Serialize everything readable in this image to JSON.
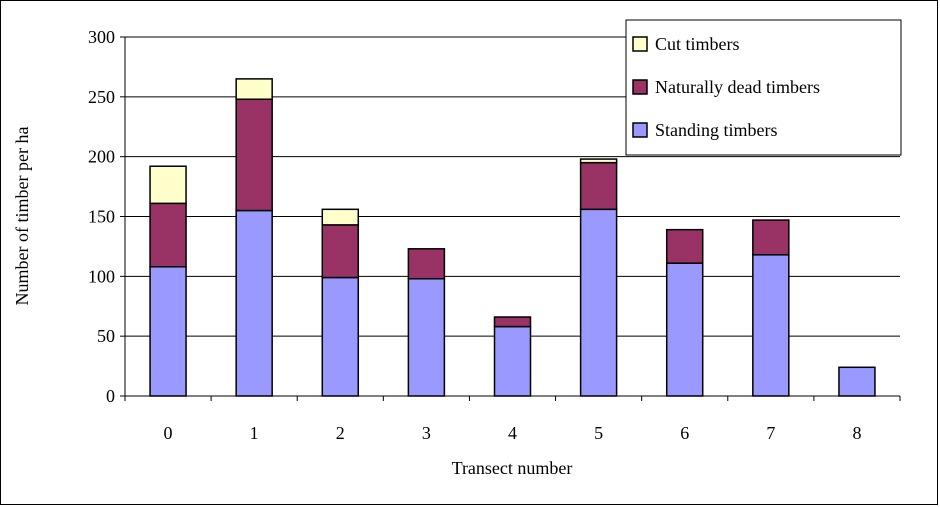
{
  "chart_data": {
    "type": "bar",
    "stacked": true,
    "title": "",
    "xlabel": "Transect number",
    "ylabel": "Number of timber per ha",
    "categories": [
      "0",
      "1",
      "2",
      "3",
      "4",
      "5",
      "6",
      "7",
      "8"
    ],
    "ylim": [
      0,
      300
    ],
    "yticks": [
      "0",
      "50",
      "100",
      "150",
      "200",
      "250",
      "300"
    ],
    "grid": true,
    "legend_position": "top-right",
    "series": [
      {
        "name": "Standing timbers",
        "color": "#9999ff",
        "values": [
          108,
          155,
          99,
          98,
          58,
          156,
          111,
          118,
          24
        ]
      },
      {
        "name": "Naturally dead timbers",
        "color": "#993366",
        "values": [
          53,
          93,
          44,
          25,
          8,
          39,
          28,
          29,
          0
        ]
      },
      {
        "name": "Cut timbers",
        "color": "#ffffcc",
        "values": [
          31,
          17,
          13,
          0,
          0,
          3,
          0,
          0,
          0
        ]
      }
    ],
    "legend_order": [
      "Cut timbers",
      "Naturally dead timbers",
      "Standing timbers"
    ]
  }
}
